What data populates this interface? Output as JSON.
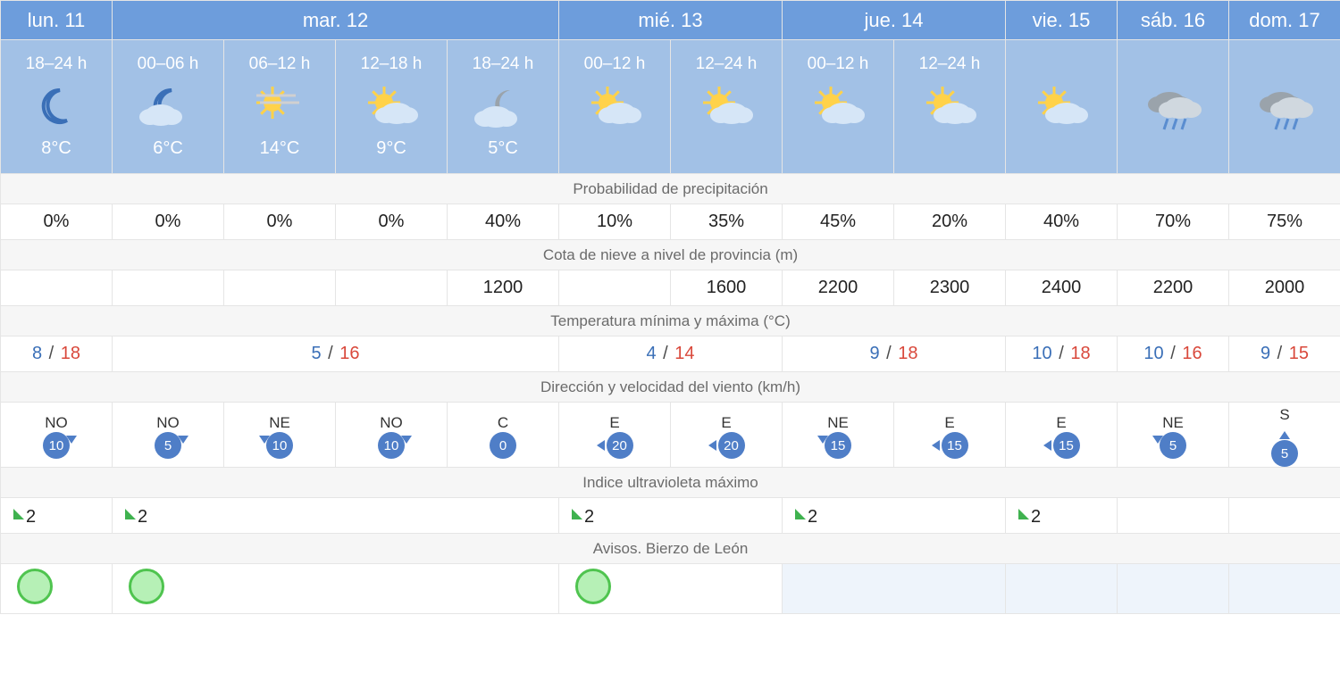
{
  "colors": {
    "day_header_bg": "#6d9ddc",
    "slot_bg": "#a2c1e6",
    "section_bg": "#f6f6f6",
    "section_text": "#6b6b6b",
    "border": "#e5e5e5",
    "temp_min": "#3a6fb7",
    "temp_max": "#d9483b",
    "wind_badge_bg": "#4f7ec7",
    "uv_triangle": "#3fb24f",
    "aviso_fill": "#b6f0b6",
    "aviso_border": "#4fc44f",
    "future_empty_bg": "#eef4fb"
  },
  "layout": {
    "total_columns": 12,
    "days": [
      {
        "label": "lun. 11",
        "span": 1
      },
      {
        "label": "mar. 12",
        "span": 4
      },
      {
        "label": "mié. 13",
        "span": 2
      },
      {
        "label": "jue. 14",
        "span": 2
      },
      {
        "label": "vie. 15",
        "span": 1
      },
      {
        "label": "sáb. 16",
        "span": 1
      },
      {
        "label": "dom. 17",
        "span": 1
      }
    ]
  },
  "slots": [
    {
      "hours": "18–24 h",
      "icon": "moon",
      "temp": "8°C"
    },
    {
      "hours": "00–06 h",
      "icon": "cloud-moon",
      "temp": "6°C"
    },
    {
      "hours": "06–12 h",
      "icon": "sun-haze",
      "temp": "14°C"
    },
    {
      "hours": "12–18 h",
      "icon": "sun-cloud",
      "temp": "9°C"
    },
    {
      "hours": "18–24 h",
      "icon": "cloud-moon-grey",
      "temp": "5°C"
    },
    {
      "hours": "00–12 h",
      "icon": "sun-cloud",
      "temp": ""
    },
    {
      "hours": "12–24 h",
      "icon": "sun-cloud",
      "temp": ""
    },
    {
      "hours": "00–12 h",
      "icon": "sun-cloud",
      "temp": ""
    },
    {
      "hours": "12–24 h",
      "icon": "sun-cloud",
      "temp": ""
    },
    {
      "hours": "",
      "icon": "sun-cloud",
      "temp": ""
    },
    {
      "hours": "",
      "icon": "rain",
      "temp": ""
    },
    {
      "hours": "",
      "icon": "rain",
      "temp": ""
    }
  ],
  "sections": {
    "precip_label": "Probabilidad de precipitación",
    "precip": [
      "0%",
      "0%",
      "0%",
      "0%",
      "40%",
      "10%",
      "35%",
      "45%",
      "20%",
      "40%",
      "70%",
      "75%"
    ],
    "snow_label": "Cota de nieve a nivel de provincia (m)",
    "snow": [
      "",
      "",
      "",
      "",
      "1200",
      "",
      "1600",
      "2200",
      "2300",
      "2400",
      "2200",
      "2000"
    ],
    "temp_label": "Temperatura mínima y máxima (°C)",
    "temp_ranges": [
      {
        "span": 1,
        "min": "8",
        "max": "18"
      },
      {
        "span": 4,
        "min": "5",
        "max": "16"
      },
      {
        "span": 2,
        "min": "4",
        "max": "14"
      },
      {
        "span": 2,
        "min": "9",
        "max": "18"
      },
      {
        "span": 1,
        "min": "10",
        "max": "18"
      },
      {
        "span": 1,
        "min": "10",
        "max": "16"
      },
      {
        "span": 1,
        "min": "9",
        "max": "15"
      }
    ],
    "wind_label": "Dirección y velocidad del viento (km/h)",
    "wind": [
      {
        "dir": "NO",
        "speed": "10",
        "arrow": "dr"
      },
      {
        "dir": "NO",
        "speed": "5",
        "arrow": "dr"
      },
      {
        "dir": "NE",
        "speed": "10",
        "arrow": "dl"
      },
      {
        "dir": "NO",
        "speed": "10",
        "arrow": "dr"
      },
      {
        "dir": "C",
        "speed": "0",
        "arrow": "calm"
      },
      {
        "dir": "E",
        "speed": "20",
        "arrow": "left"
      },
      {
        "dir": "E",
        "speed": "20",
        "arrow": "left"
      },
      {
        "dir": "NE",
        "speed": "15",
        "arrow": "dl"
      },
      {
        "dir": "E",
        "speed": "15",
        "arrow": "left"
      },
      {
        "dir": "E",
        "speed": "15",
        "arrow": "left"
      },
      {
        "dir": "NE",
        "speed": "5",
        "arrow": "dl"
      },
      {
        "dir": "S",
        "speed": "5",
        "arrow": "up"
      }
    ],
    "uv_label": "Indice ultravioleta máximo",
    "uv_cells": [
      {
        "span": 1,
        "val": "2"
      },
      {
        "span": 4,
        "val": "2"
      },
      {
        "span": 2,
        "val": "2"
      },
      {
        "span": 2,
        "val": "2"
      },
      {
        "span": 1,
        "val": "2"
      },
      {
        "span": 1,
        "val": ""
      },
      {
        "span": 1,
        "val": ""
      }
    ],
    "aviso_label": "Avisos. Bierzo de León",
    "aviso_cells": [
      {
        "span": 1,
        "state": "ok"
      },
      {
        "span": 4,
        "state": "ok"
      },
      {
        "span": 2,
        "state": "ok"
      },
      {
        "span": 2,
        "state": "none"
      },
      {
        "span": 1,
        "state": "none"
      },
      {
        "span": 1,
        "state": "none"
      },
      {
        "span": 1,
        "state": "none"
      }
    ]
  }
}
